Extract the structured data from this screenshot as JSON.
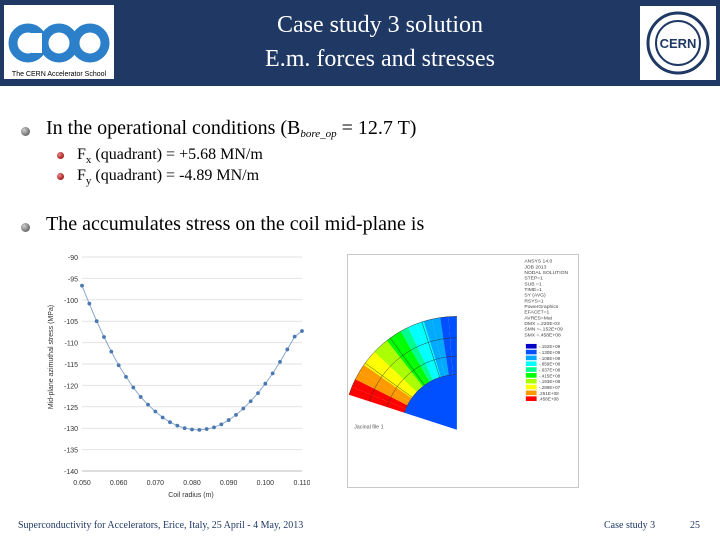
{
  "header": {
    "title_line1": "Case study 3 solution",
    "title_line2": "E.m. forces and stresses",
    "left_logo_text": "The CERN Accelerator School",
    "right_logo_text": "CERN"
  },
  "bullets": {
    "b1_pre": "In the operational conditions (B",
    "b1_sub": "bore_op",
    "b1_post": " = 12.7 T)",
    "s1_pre": "F",
    "s1_sub": "x",
    "s1_post": " (quadrant) = +5.68 MN/m",
    "s2_pre": "F",
    "s2_sub": "y",
    "s2_post": " (quadrant) = -4.89 MN/m",
    "b2": "The accumulates stress on the coil mid-plane is"
  },
  "chart_data": {
    "type": "scatter",
    "title": "",
    "xlabel": "Coil radius (m)",
    "ylabel": "Mid-plane azimuthal stress (MPa)",
    "xlim": [
      0.05,
      0.11
    ],
    "ylim": [
      -140,
      -90
    ],
    "xticks": [
      "0.050",
      "0.060",
      "0.070",
      "0.080",
      "0.090",
      "0.100",
      "0.110"
    ],
    "yticks": [
      "-90",
      "-95",
      "-100",
      "-105",
      "-110",
      "-115",
      "-120",
      "-125",
      "-130",
      "-135",
      "-140"
    ],
    "x": [
      0.05,
      0.052,
      0.054,
      0.056,
      0.058,
      0.06,
      0.062,
      0.064,
      0.066,
      0.068,
      0.07,
      0.072,
      0.074,
      0.076,
      0.078,
      0.08,
      0.082,
      0.084,
      0.086,
      0.088,
      0.09,
      0.092,
      0.094,
      0.096,
      0.098,
      0.1,
      0.102,
      0.104,
      0.106,
      0.108,
      0.11
    ],
    "y": [
      -96.7,
      -100.9,
      -105.0,
      -108.7,
      -112.1,
      -115.3,
      -118.0,
      -120.5,
      -122.7,
      -124.5,
      -126.1,
      -127.5,
      -128.6,
      -129.4,
      -130.0,
      -130.3,
      -130.4,
      -130.2,
      -129.8,
      -129.1,
      -128.1,
      -126.9,
      -125.4,
      -123.7,
      -121.8,
      -119.6,
      -117.2,
      -114.5,
      -111.6,
      -108.6,
      -107.3
    ]
  },
  "fea": {
    "bottom_label": "Jacinal file 1",
    "info_lines": [
      "ANSYS 14.0",
      "JOB 2013",
      "NODAL SOLUTION",
      "STEP=1",
      "SUB =1",
      "TIME=1",
      "SY (AVG)",
      "RSYS=1",
      "PowerGraphics",
      "EFACET=1",
      "AVRES=Mat",
      "DMX =.220E-03",
      "SMN =-.152E+09",
      "SMX =.458E+08"
    ],
    "legend_values": [
      "-.152E+09",
      "-.130E+09",
      "-.108E+09",
      "-.859E+08",
      "-.637E+08",
      "-.415E+08",
      "-.193E+08",
      "-.289E+07",
      ".251E+08",
      ".458E+08"
    ],
    "legend_colors": [
      "#0000c8",
      "#0050ff",
      "#00aaff",
      "#00ffff",
      "#00ff90",
      "#00ff00",
      "#aaff00",
      "#ffff00",
      "#ff9900",
      "#ff0000"
    ]
  },
  "footer": {
    "left": "Superconductivity for Accelerators, Erice, Italy, 25 April - 4 May, 2013",
    "center": "Case study 3",
    "page": "25"
  }
}
